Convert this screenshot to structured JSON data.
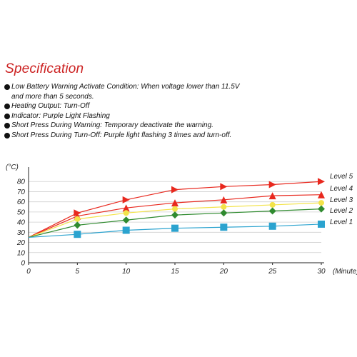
{
  "heading": "Specification",
  "specs": [
    "Low Battery Warning Activate Condition: When voltage lower than 11.5V\nand more than 5 seconds.",
    "Heating Output: Turn-Off",
    "Indicator: Purple Light Flashing",
    "Short Press During Warning: Temporary deactivate the warning.",
    "Short Press During Turn-Off: Purple light flashing 3 times and turn-off."
  ],
  "chart_data": {
    "type": "line",
    "ylabel": "(°C)",
    "xlabel": "(Minute)",
    "x": [
      0,
      5,
      10,
      15,
      20,
      25,
      30
    ],
    "xlim": [
      0,
      30
    ],
    "ylim": [
      0,
      90
    ],
    "xticks": [
      "0",
      "5",
      "10",
      "15",
      "20",
      "25",
      "30"
    ],
    "yticks": [
      "0",
      "10",
      "20",
      "30",
      "40",
      "50",
      "60",
      "70",
      "80"
    ],
    "grid": "horizontal",
    "legend": "right, inline at line ends",
    "series": [
      {
        "name": "Level 5",
        "color": "#e8281e",
        "marker": "triangle-right",
        "values": [
          25,
          49,
          62,
          72,
          75,
          77,
          80
        ]
      },
      {
        "name": "Level 4",
        "color": "#e8281e",
        "marker": "triangle-up",
        "values": [
          25,
          46,
          54,
          59,
          62,
          66,
          67
        ]
      },
      {
        "name": "Level 3",
        "color": "#f3e34a",
        "marker": "circle",
        "values": [
          25,
          43,
          49,
          53,
          55,
          57,
          59
        ]
      },
      {
        "name": "Level 2",
        "color": "#2f8a2f",
        "marker": "diamond",
        "values": [
          25,
          37,
          42,
          47,
          49,
          51,
          53
        ]
      },
      {
        "name": "Level 1",
        "color": "#2ba3cf",
        "marker": "square",
        "values": [
          25,
          28,
          32,
          34,
          35,
          36,
          38
        ]
      }
    ]
  }
}
